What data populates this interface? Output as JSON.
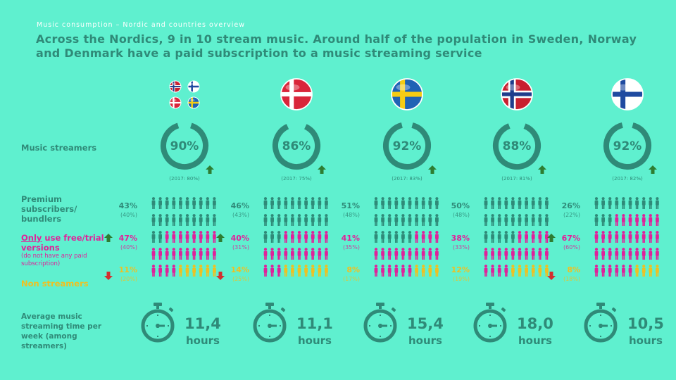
{
  "header": {
    "subtitle": "Music consumption – Nordic and countries overview",
    "title": "Across the Nordics, 9 in 10 stream music. Around half of the population in Sweden, Norway and Denmark have a paid subscription to a music streaming service"
  },
  "labels": {
    "music_streamers": "Music streamers",
    "premium": "Premium subscribers/ bundlers",
    "only_free": "Only",
    "only_free_rest": " use free/trial versions",
    "only_free_note": "(do not have any paid subscription)",
    "non_streamers": "Non streamers",
    "avg_time": "Average music streaming time per week (among streamers)"
  },
  "colors": {
    "teal": "#2f8a78",
    "magenta": "#e0219a",
    "yellow": "#f0c020",
    "arrow_up": "#2e7d32",
    "arrow_down": "#d32f2f"
  },
  "countries": [
    {
      "name": "Nordic",
      "flag": "nordic-flags",
      "streamers": "90%",
      "streamers_prev": "(2017: 80%)",
      "streamers_value": 90,
      "arrow_streamers": "up",
      "premium": "43%",
      "premium_prev": "(40%)",
      "premium_value": 43,
      "free": "47%",
      "free_prev": "(40%)",
      "free_value": 47,
      "arrow_free": "up",
      "non": "11%",
      "non_prev": "(20%)",
      "non_value": 11,
      "arrow_non": "down",
      "time": "11,4",
      "hours": "hours"
    },
    {
      "name": "Denmark",
      "flag": "denmark-flag",
      "streamers": "86%",
      "streamers_prev": "(2017: 75%)",
      "streamers_value": 86,
      "arrow_streamers": "up",
      "premium": "46%",
      "premium_prev": "(43%)",
      "premium_value": 46,
      "free": "40%",
      "free_prev": "(31%)",
      "free_value": 40,
      "arrow_free": "up",
      "non": "14%",
      "non_prev": "(25%)",
      "non_value": 14,
      "arrow_non": "down",
      "time": "11,1",
      "hours": "hours"
    },
    {
      "name": "Sweden",
      "flag": "sweden-flag",
      "streamers": "92%",
      "streamers_prev": "(2017: 83%)",
      "streamers_value": 92,
      "arrow_streamers": "up",
      "premium": "51%",
      "premium_prev": "(48%)",
      "premium_value": 51,
      "free": "41%",
      "free_prev": "(35%)",
      "free_value": 41,
      "arrow_free": "",
      "non": "8%",
      "non_prev": "(17%)",
      "non_value": 8,
      "arrow_non": "",
      "time": "15,4",
      "hours": "hours"
    },
    {
      "name": "Norway",
      "flag": "norway-flag",
      "streamers": "88%",
      "streamers_prev": "(2017: 81%)",
      "streamers_value": 88,
      "arrow_streamers": "up",
      "premium": "50%",
      "premium_prev": "(48%)",
      "premium_value": 50,
      "free": "38%",
      "free_prev": "(33%)",
      "free_value": 38,
      "arrow_free": "",
      "non": "12%",
      "non_prev": "(19%)",
      "non_value": 12,
      "arrow_non": "",
      "time": "18,0",
      "hours": "hours"
    },
    {
      "name": "Finland",
      "flag": "finland-flag",
      "streamers": "92%",
      "streamers_prev": "(2017: 82%)",
      "streamers_value": 92,
      "arrow_streamers": "up",
      "premium": "26%",
      "premium_prev": "(22%)",
      "premium_value": 26,
      "free": "67%",
      "free_prev": "(60%)",
      "free_value": 67,
      "arrow_free": "up",
      "non": "8%",
      "non_prev": "(18%)",
      "non_value": 8,
      "arrow_non": "down",
      "time": "10,5",
      "hours": "hours"
    }
  ]
}
